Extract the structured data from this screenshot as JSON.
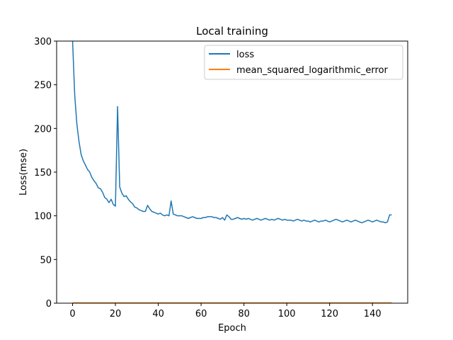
{
  "chart_data": {
    "type": "line",
    "title": "Local training",
    "xlabel": "Epoch",
    "ylabel": "Loss(mse)",
    "xlim": [
      -7.45,
      156.45
    ],
    "ylim": [
      0,
      300
    ],
    "xticks": [
      0,
      20,
      40,
      60,
      80,
      100,
      120,
      140
    ],
    "yticks": [
      0,
      50,
      100,
      150,
      200,
      250,
      300
    ],
    "grid": false,
    "legend_position": "top-right",
    "series": [
      {
        "name": "loss",
        "color": "#1f77b4",
        "x": [
          0,
          1,
          2,
          3,
          4,
          5,
          6,
          7,
          8,
          9,
          10,
          11,
          12,
          13,
          14,
          15,
          16,
          17,
          18,
          19,
          20,
          21,
          22,
          23,
          24,
          25,
          26,
          27,
          28,
          29,
          30,
          31,
          32,
          33,
          34,
          35,
          36,
          37,
          38,
          39,
          40,
          41,
          42,
          43,
          44,
          45,
          46,
          47,
          48,
          49,
          50,
          51,
          52,
          53,
          54,
          55,
          56,
          57,
          58,
          59,
          60,
          61,
          62,
          63,
          64,
          65,
          66,
          67,
          68,
          69,
          70,
          71,
          72,
          73,
          74,
          75,
          76,
          77,
          78,
          79,
          80,
          81,
          82,
          83,
          84,
          85,
          86,
          87,
          88,
          89,
          90,
          91,
          92,
          93,
          94,
          95,
          96,
          97,
          98,
          99,
          100,
          101,
          102,
          103,
          104,
          105,
          106,
          107,
          108,
          109,
          110,
          111,
          112,
          113,
          114,
          115,
          116,
          117,
          118,
          119,
          120,
          121,
          122,
          123,
          124,
          125,
          126,
          127,
          128,
          129,
          130,
          131,
          132,
          133,
          134,
          135,
          136,
          137,
          138,
          139,
          140,
          141,
          142,
          143,
          144,
          145,
          146,
          147,
          148,
          149
        ],
        "values": [
          300,
          238,
          205,
          185,
          170,
          163,
          158,
          153,
          150,
          144,
          140,
          137,
          132,
          131,
          127,
          121,
          119,
          115,
          119,
          113,
          111,
          225,
          133,
          126,
          122,
          123,
          119,
          116,
          114,
          110,
          109,
          107,
          106,
          105,
          105,
          112,
          108,
          105,
          104,
          103,
          102,
          103,
          101,
          100,
          101,
          100,
          117,
          102,
          101,
          100,
          100,
          100,
          99,
          98,
          97,
          98,
          99,
          98,
          97,
          97,
          97,
          98,
          98,
          99,
          99,
          99,
          98,
          98,
          97,
          96,
          98,
          95,
          101,
          99,
          96,
          96,
          97,
          98,
          97,
          96,
          97,
          96,
          97,
          96,
          95,
          96,
          97,
          96,
          95,
          96,
          97,
          96,
          95,
          96,
          95,
          96,
          97,
          96,
          95,
          96,
          95,
          95,
          95,
          94,
          95,
          96,
          95,
          94,
          95,
          94,
          94,
          93,
          94,
          95,
          94,
          93,
          94,
          94,
          95,
          94,
          93,
          94,
          95,
          96,
          95,
          94,
          93,
          94,
          95,
          94,
          93,
          94,
          95,
          94,
          93,
          92,
          93,
          94,
          95,
          94,
          93,
          94,
          95,
          94,
          93,
          93,
          92,
          93,
          101,
          101
        ]
      },
      {
        "name": "mean_squared_logarithmic_error",
        "color": "#ff7f0e",
        "x": [
          0,
          149
        ],
        "values": [
          0.4,
          0.4
        ]
      }
    ]
  }
}
